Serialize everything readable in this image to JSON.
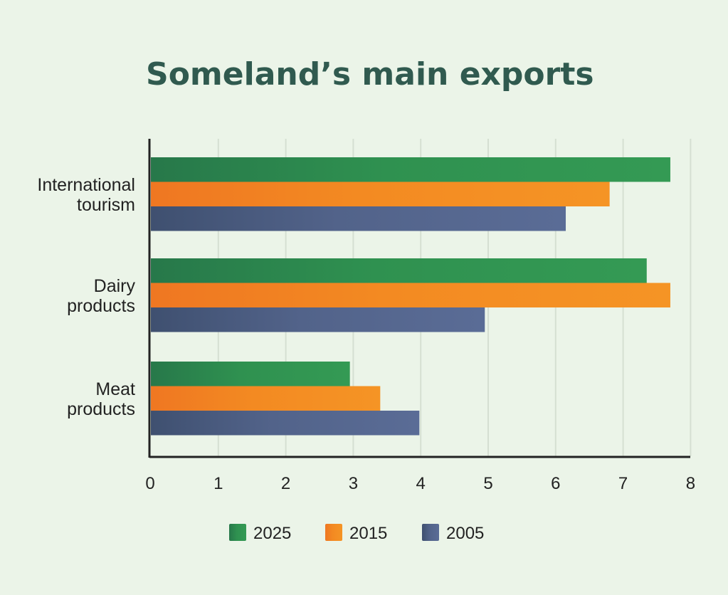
{
  "chart_data": {
    "type": "bar",
    "orientation": "horizontal",
    "title": "Someland’s main exports",
    "categories": [
      [
        "International",
        "tourism"
      ],
      [
        "Dairy",
        "products"
      ],
      [
        "Meat",
        "products"
      ]
    ],
    "series": [
      {
        "name": "2025",
        "color": "#2f9150",
        "values": [
          7.7,
          7.35,
          2.95
        ]
      },
      {
        "name": "2015",
        "color": "#f38a22",
        "values": [
          6.8,
          7.7,
          3.4
        ]
      },
      {
        "name": "2005",
        "color": "#55668f",
        "values": [
          6.15,
          4.95,
          3.98
        ]
      }
    ],
    "xlim": [
      0,
      8
    ],
    "xticks": [
      "0",
      "1",
      "2",
      "3",
      "4",
      "5",
      "6",
      "7",
      "8"
    ],
    "xlabel": "",
    "ylabel": "",
    "grid": "vertical",
    "legend_position": "bottom-center"
  }
}
